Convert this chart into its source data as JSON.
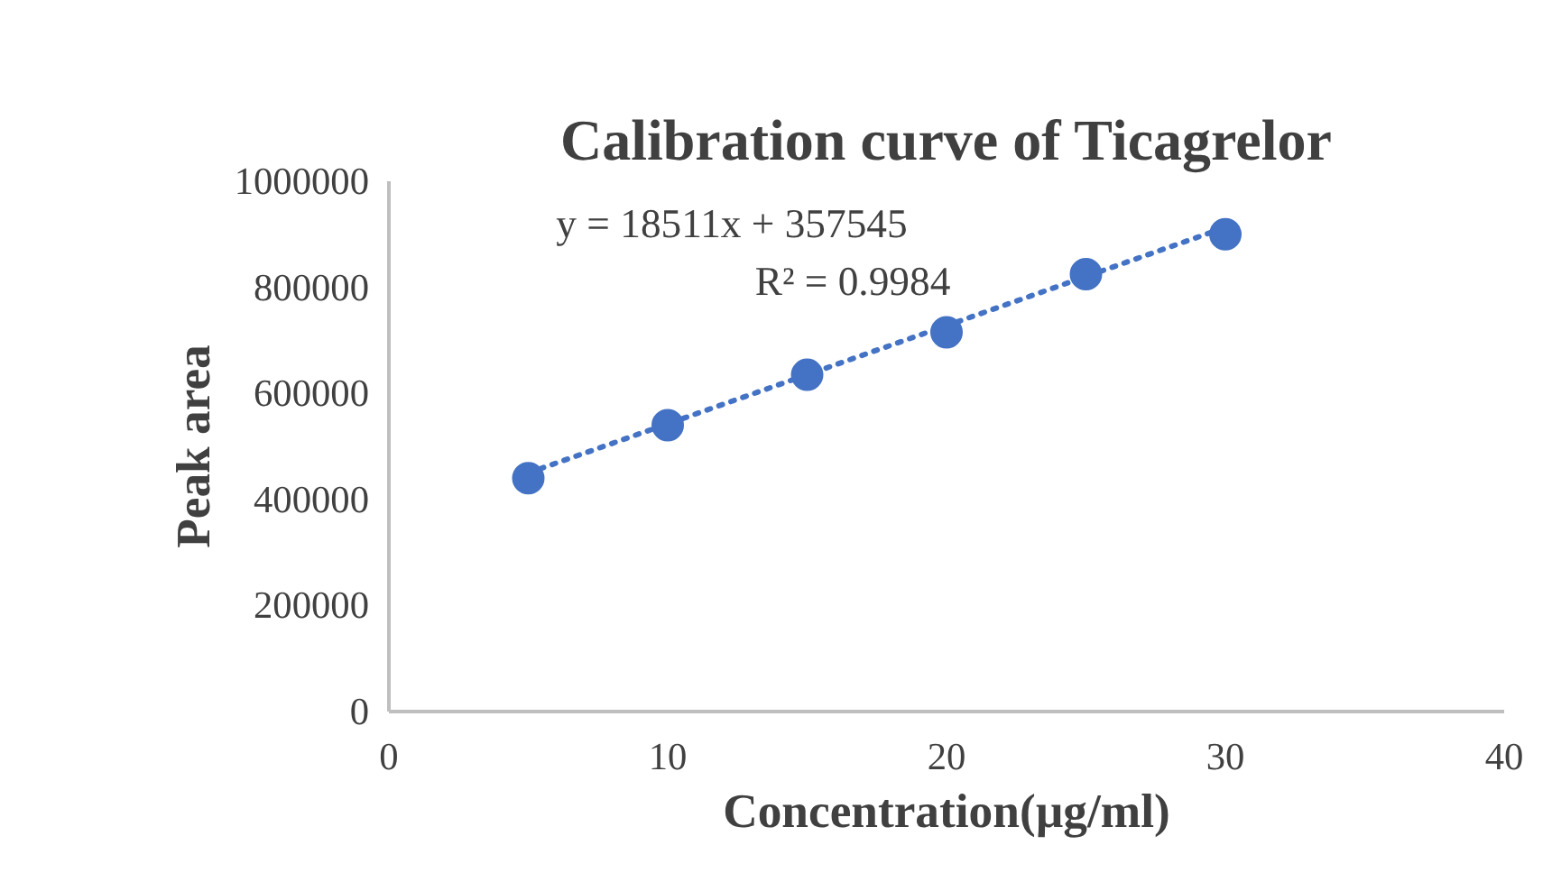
{
  "chart_data": {
    "type": "scatter",
    "title": "Calibration curve of Ticagrelor",
    "xlabel": "Concentration(µg/ml)",
    "ylabel": "Peak area",
    "x": [
      5,
      10,
      15,
      20,
      25,
      30
    ],
    "series": [
      {
        "color": "#4472c4",
        "values": [
          440000,
          540000,
          635000,
          715000,
          825000,
          900000
        ],
        "marker": "circle"
      },
      {
        "type": "line",
        "color": "#4472c4",
        "x": [
          5,
          30
        ],
        "values": [
          450000,
          913000
        ],
        "marker": "none",
        "line_style": "dotted"
      }
    ],
    "xlim": [
      0,
      40
    ],
    "xticks": [
      0,
      10,
      20,
      30,
      40
    ],
    "ylim": [
      0,
      1000000
    ],
    "yticks": [
      0,
      200000,
      400000,
      600000,
      800000,
      1000000
    ],
    "annotations": [
      "y = 18511x + 357545",
      "R² = 0.9984"
    ],
    "grid": false
  }
}
